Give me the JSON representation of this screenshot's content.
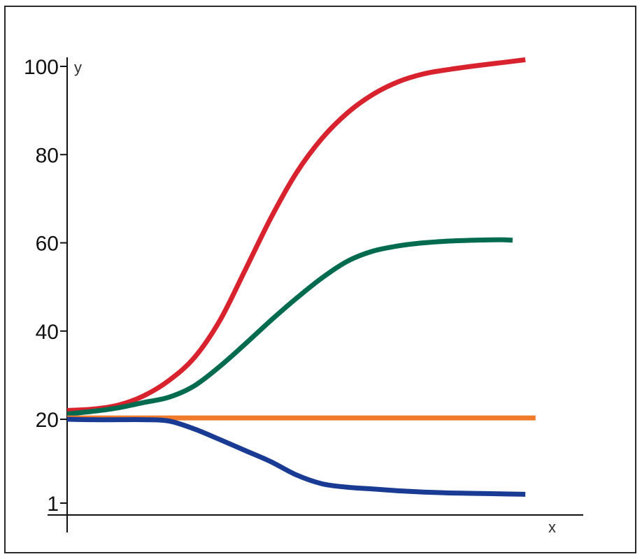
{
  "chart_data": {
    "type": "line",
    "title": "",
    "xlabel": "x",
    "ylabel": "y",
    "y_ticks": [
      {
        "value": 1,
        "label": "1"
      },
      {
        "value": 20,
        "label": "20"
      },
      {
        "value": 40,
        "label": "40"
      },
      {
        "value": 60,
        "label": "60"
      },
      {
        "value": 80,
        "label": "80"
      },
      {
        "value": 100,
        "label": "100"
      }
    ],
    "ylim": [
      1,
      100
    ],
    "xlim": [
      0,
      10
    ],
    "grid": false,
    "legend": "none",
    "series": [
      {
        "color": "#d8232e",
        "x": [
          0,
          0.5,
          1,
          1.5,
          2,
          2.5,
          3,
          3.5,
          4,
          4.5,
          5,
          5.5,
          6,
          6.5,
          7,
          7.5,
          8,
          8.5,
          9
        ],
        "y": [
          22,
          22.3,
          23.2,
          25.3,
          28.8,
          34,
          42.4,
          53.9,
          65.6,
          75.8,
          83.6,
          89.4,
          93.6,
          96.5,
          98.3,
          99.3,
          100.1,
          100.8,
          101.5
        ]
      },
      {
        "color": "#006b4e",
        "x": [
          0,
          0.5,
          1,
          1.5,
          2,
          2.5,
          3,
          3.5,
          4,
          4.5,
          5,
          5.5,
          6,
          6.5,
          7,
          7.5,
          8,
          8.5,
          8.75
        ],
        "y": [
          21.2,
          21.8,
          22.6,
          23.8,
          25,
          27.6,
          32,
          37.1,
          42.4,
          47.4,
          52,
          55.8,
          58.1,
          59.3,
          60,
          60.4,
          60.6,
          60.7,
          60.6
        ]
      },
      {
        "color": "#ef7a2b",
        "x": [
          0,
          9.2
        ],
        "y": [
          20.3,
          20.3
        ]
      },
      {
        "color": "#193b93",
        "x": [
          0,
          0.5,
          1,
          1.5,
          2,
          2.5,
          3,
          3.5,
          4,
          4.5,
          5,
          5.5,
          6,
          6.5,
          7,
          7.5,
          8,
          8.5,
          9
        ],
        "y": [
          20,
          19.9,
          19.9,
          19.9,
          19.6,
          17.8,
          15.4,
          12.9,
          10.4,
          7.4,
          5.4,
          4.6,
          4.2,
          3.8,
          3.5,
          3.3,
          3.2,
          3.1,
          3
        ]
      }
    ]
  }
}
